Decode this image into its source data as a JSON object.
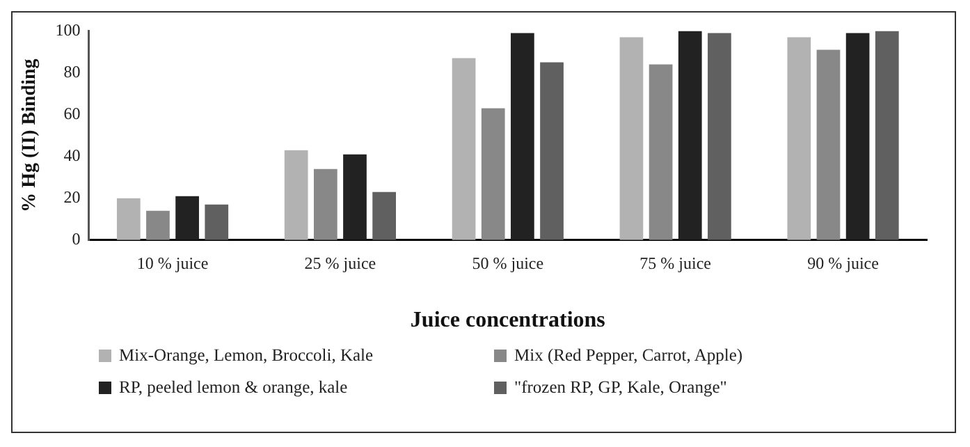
{
  "chart_data": {
    "type": "bar",
    "xlabel": "Juice concentrations",
    "ylabel": "% Hg (II) Binding",
    "categories": [
      "10 % juice",
      "25 % juice",
      "50 % juice",
      "75 % juice",
      "90 % juice"
    ],
    "series": [
      {
        "name": "Mix-Orange, Lemon, Broccoli, Kale",
        "color": "#b2b2b2",
        "values": [
          20,
          43,
          87,
          97,
          97
        ]
      },
      {
        "name": "Mix (Red Pepper, Carrot, Apple)",
        "color": "#888888",
        "values": [
          14,
          34,
          63,
          84,
          91
        ]
      },
      {
        "name": "RP, peeled lemon & orange, kale",
        "color": "#222222",
        "values": [
          21,
          41,
          99,
          100,
          99
        ]
      },
      {
        "name": "\"frozen RP, GP, Kale, Orange\"",
        "color": "#606060",
        "values": [
          17,
          23,
          85,
          99,
          100
        ]
      }
    ],
    "ylim": [
      0,
      100
    ],
    "yticks": [
      0,
      20,
      40,
      60,
      80,
      100
    ],
    "grid": false,
    "legend": "bottom"
  }
}
